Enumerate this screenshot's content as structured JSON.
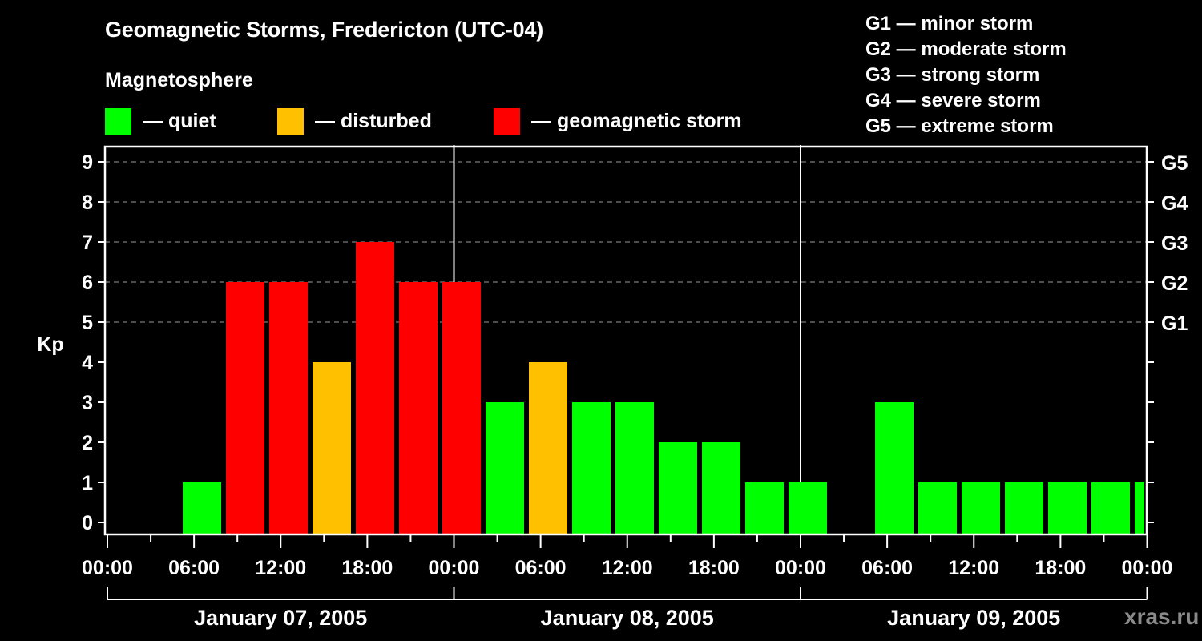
{
  "header": {
    "title": "Geomagnetic Storms, Fredericton (UTC-04)",
    "subtitle": "Magnetosphere"
  },
  "legend": [
    {
      "label": "— quiet",
      "color": "#00ff00"
    },
    {
      "label": "— disturbed",
      "color": "#ffc000"
    },
    {
      "label": "— geomagnetic storm",
      "color": "#ff0000"
    }
  ],
  "storm_scale": [
    "G1 — minor storm",
    "G2 — moderate storm",
    "G3 — strong storm",
    "G4 — severe storm",
    "G5 — extreme storm"
  ],
  "watermark": "xras.ru",
  "chart_data": {
    "type": "bar",
    "title": "Geomagnetic Storms, Fredericton (UTC-04)",
    "ylabel": "Kp",
    "xlabel": "",
    "ylim": [
      0,
      9
    ],
    "y_ticks": [
      0,
      1,
      2,
      3,
      4,
      5,
      6,
      7,
      8,
      9
    ],
    "right_axis_labels": [
      {
        "kp": 5,
        "label": "G1"
      },
      {
        "kp": 6,
        "label": "G2"
      },
      {
        "kp": 7,
        "label": "G3"
      },
      {
        "kp": 8,
        "label": "G4"
      },
      {
        "kp": 9,
        "label": "G5"
      }
    ],
    "x_tick_labels": [
      "00:00",
      "06:00",
      "12:00",
      "18:00",
      "00:00",
      "06:00",
      "12:00",
      "18:00",
      "00:00",
      "06:00",
      "12:00",
      "18:00",
      "00:00"
    ],
    "date_labels": [
      "January 07, 2005",
      "January 08, 2005",
      "January 09, 2005"
    ],
    "grid": {
      "horizontal_dashed": [
        5,
        6,
        7,
        8,
        9
      ],
      "day_separators": true
    },
    "bar_interval_hours": 3,
    "colors": {
      "quiet": "#00ff00",
      "disturbed": "#ffc000",
      "storm": "#ff0000"
    },
    "bars": [
      {
        "i": 0,
        "kp": null
      },
      {
        "i": 1,
        "kp": null
      },
      {
        "i": 2,
        "kp": 1,
        "status": "quiet"
      },
      {
        "i": 3,
        "kp": 6,
        "status": "storm"
      },
      {
        "i": 4,
        "kp": 6,
        "status": "storm"
      },
      {
        "i": 5,
        "kp": 4,
        "status": "disturbed"
      },
      {
        "i": 6,
        "kp": 7,
        "status": "storm"
      },
      {
        "i": 7,
        "kp": 6,
        "status": "storm"
      },
      {
        "i": 8,
        "kp": 6,
        "status": "storm"
      },
      {
        "i": 9,
        "kp": 3,
        "status": "quiet"
      },
      {
        "i": 10,
        "kp": 4,
        "status": "disturbed"
      },
      {
        "i": 11,
        "kp": 3,
        "status": "quiet"
      },
      {
        "i": 12,
        "kp": 3,
        "status": "quiet"
      },
      {
        "i": 13,
        "kp": 2,
        "status": "quiet"
      },
      {
        "i": 14,
        "kp": 2,
        "status": "quiet"
      },
      {
        "i": 15,
        "kp": 1,
        "status": "quiet"
      },
      {
        "i": 16,
        "kp": 1,
        "status": "quiet"
      },
      {
        "i": 17,
        "kp": null
      },
      {
        "i": 18,
        "kp": 3,
        "status": "quiet"
      },
      {
        "i": 19,
        "kp": 1,
        "status": "quiet"
      },
      {
        "i": 20,
        "kp": 1,
        "status": "quiet"
      },
      {
        "i": 21,
        "kp": 1,
        "status": "quiet"
      },
      {
        "i": 22,
        "kp": 1,
        "status": "quiet"
      },
      {
        "i": 23,
        "kp": 1,
        "status": "quiet"
      },
      {
        "i": 24,
        "kp": 1,
        "status": "quiet"
      }
    ]
  }
}
